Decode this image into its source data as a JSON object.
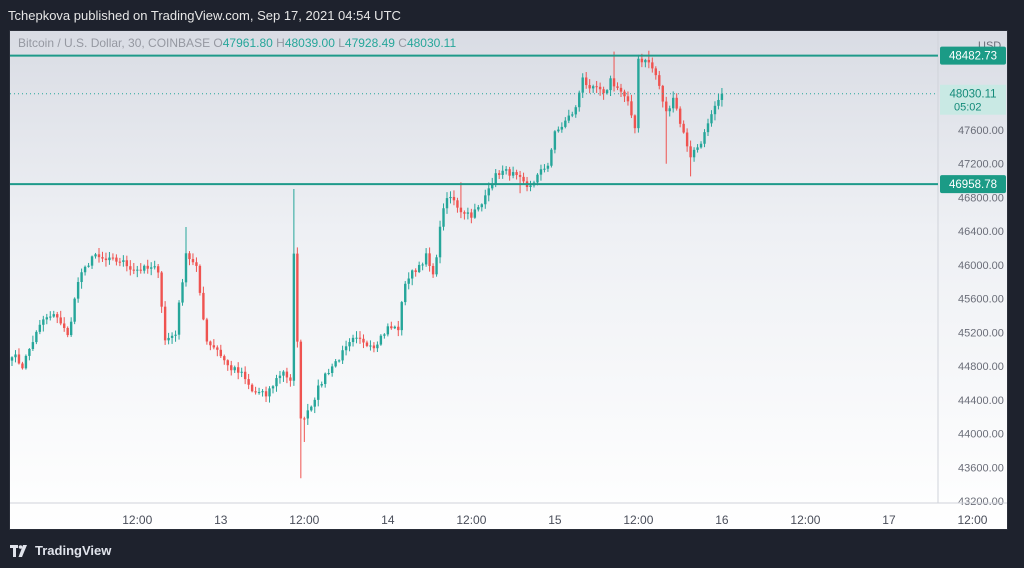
{
  "header": {
    "title": "Tchepkova published on TradingView.com, Sep 17, 2021 04:54 UTC"
  },
  "footer": {
    "brand": "TradingView",
    "logo_mark": "17"
  },
  "colors": {
    "up": "#26a69a",
    "down": "#ef5350",
    "level_line": "#1e9a8a",
    "axis_text": "#6a6d78",
    "legend_text": "#9598a1"
  },
  "chart_data": {
    "type": "candlestick",
    "title": "",
    "symbol": "Bitcoin / U.S. Dollar, 30, COINBASE",
    "ohlc_labels": {
      "o": "O",
      "h": "H",
      "l": "L",
      "c": "C"
    },
    "ohlc_values": {
      "o": "47961.80",
      "h": "48039.00",
      "l": "47928.49",
      "c": "48030.11"
    },
    "currency": "USD",
    "last_price": "48030.11",
    "countdown": "05:02",
    "level_labels": [
      "48482.73",
      "46958.78"
    ],
    "levels": [
      48482.73,
      46958.78
    ],
    "ylim": [
      43200,
      48600
    ],
    "y_ticks": [
      "43200.00",
      "43600.00",
      "44000.00",
      "44400.00",
      "44800.00",
      "45200.00",
      "45600.00",
      "46000.00",
      "46400.00",
      "46800.00",
      "47200.00",
      "47600.00"
    ],
    "x_ticks": [
      {
        "label": "12:00",
        "index": 36
      },
      {
        "label": "13",
        "index": 60
      },
      {
        "label": "12:00",
        "index": 84
      },
      {
        "label": "14",
        "index": 108
      },
      {
        "label": "12:00",
        "index": 132
      },
      {
        "label": "15",
        "index": 156
      },
      {
        "label": "12:00",
        "index": 180
      },
      {
        "label": "16",
        "index": 204
      },
      {
        "label": "12:00",
        "index": 228
      },
      {
        "label": "17",
        "index": 252
      },
      {
        "label": "12:00",
        "index": 276
      }
    ],
    "anchors": [
      [
        0,
        44950
      ],
      [
        3,
        44800
      ],
      [
        6,
        45100
      ],
      [
        9,
        45350
      ],
      [
        13,
        45400
      ],
      [
        16,
        45150
      ],
      [
        19,
        45800
      ],
      [
        23,
        46100
      ],
      [
        27,
        46050
      ],
      [
        31,
        46050
      ],
      [
        35,
        45950
      ],
      [
        39,
        45950
      ],
      [
        42,
        45950
      ],
      [
        44,
        45100
      ],
      [
        47,
        45200
      ],
      [
        50,
        46150
      ],
      [
        53,
        45950
      ],
      [
        56,
        45100
      ],
      [
        59,
        45000
      ],
      [
        62,
        44800
      ],
      [
        66,
        44700
      ],
      [
        69,
        44500
      ],
      [
        73,
        44450
      ],
      [
        76,
        44650
      ],
      [
        78,
        44750
      ],
      [
        80,
        44600
      ],
      [
        81,
        46100
      ],
      [
        83,
        44150
      ],
      [
        86,
        44350
      ],
      [
        90,
        44700
      ],
      [
        94,
        44900
      ],
      [
        98,
        45100
      ],
      [
        101,
        45100
      ],
      [
        104,
        45050
      ],
      [
        108,
        45250
      ],
      [
        111,
        45250
      ],
      [
        113,
        45800
      ],
      [
        116,
        45950
      ],
      [
        119,
        46100
      ],
      [
        121,
        45850
      ],
      [
        124,
        46700
      ],
      [
        126,
        46800
      ],
      [
        129,
        46650
      ],
      [
        132,
        46600
      ],
      [
        135,
        46700
      ],
      [
        137,
        46950
      ],
      [
        140,
        47100
      ],
      [
        143,
        47100
      ],
      [
        146,
        47000
      ],
      [
        148,
        46900
      ],
      [
        151,
        47050
      ],
      [
        154,
        47200
      ],
      [
        156,
        47550
      ],
      [
        159,
        47700
      ],
      [
        162,
        47850
      ],
      [
        164,
        48250
      ],
      [
        166,
        48050
      ],
      [
        168,
        48100
      ],
      [
        170,
        48000
      ],
      [
        172,
        48200
      ],
      [
        175,
        48050
      ],
      [
        177,
        47900
      ],
      [
        179,
        47650
      ],
      [
        180,
        48450
      ],
      [
        183,
        48400
      ],
      [
        185,
        48250
      ],
      [
        188,
        47800
      ],
      [
        190,
        48000
      ],
      [
        193,
        47550
      ],
      [
        195,
        47300
      ],
      [
        197,
        47400
      ],
      [
        199,
        47550
      ],
      [
        202,
        47850
      ],
      [
        204,
        48030
      ]
    ]
  }
}
